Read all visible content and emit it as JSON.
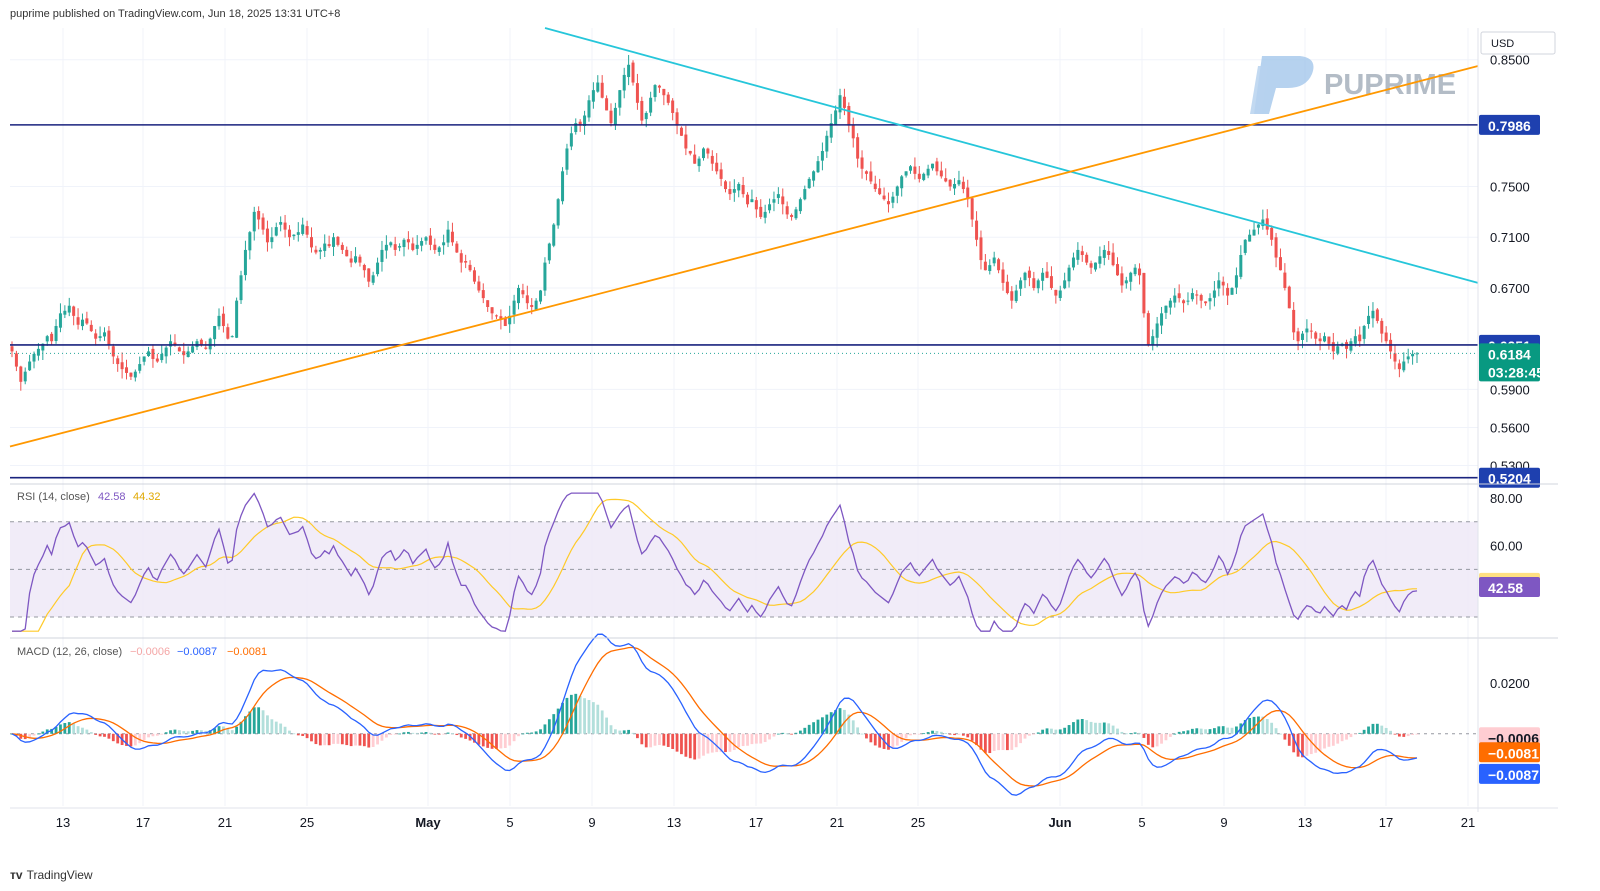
{
  "header": {
    "publish_line": "puprime published on TradingView.com, Jun 18, 2025 13:31 UTC+8"
  },
  "brand": {
    "watermark": "PUPRIME",
    "footer_logo": "TradingView",
    "accent": "#8ab4e0"
  },
  "currency_label": "USD",
  "colors": {
    "up": "#26a69a",
    "down": "#ef5350",
    "hline": "#1a237e",
    "trend_cyan": "#26c6da",
    "trend_orange": "#ff9800",
    "rsi_line": "#7e57c2",
    "rsi_ma": "#ffca28",
    "rsi_band": "#ede7f6",
    "macd_line": "#2962ff",
    "signal_line": "#ff6d00",
    "last_price_bg": "#089981",
    "hline_tag_bg": "#1e40af"
  },
  "chart_data": [
    {
      "type": "candlestick",
      "title": "",
      "price_axis": {
        "ticks": [
          "0.8500",
          "0.7500",
          "0.7100",
          "0.6700",
          "0.5900",
          "0.5600",
          "0.5300"
        ],
        "tick_values": [
          0.85,
          0.75,
          0.71,
          0.67,
          0.59,
          0.56,
          0.53
        ],
        "ylim": [
          0.517,
          0.875
        ]
      },
      "time_axis": {
        "labels": [
          "13",
          "17",
          "21",
          "25",
          "May",
          "5",
          "9",
          "13",
          "17",
          "21",
          "25",
          "Jun",
          "5",
          "9",
          "13",
          "17",
          "21"
        ]
      },
      "horizontal_levels": [
        {
          "label": "0.7986",
          "value": 0.7986
        },
        {
          "label": "0.6251",
          "value": 0.6251
        },
        {
          "label": "0.5204",
          "value": 0.5204
        }
      ],
      "trendlines": [
        {
          "name": "descending",
          "from": [
            "Apr 29",
            0.875
          ],
          "to": [
            "Jun 21",
            0.674
          ]
        },
        {
          "name": "ascending",
          "from": [
            "Apr 10",
            0.545
          ],
          "to": [
            "Jun 21",
            0.845
          ]
        }
      ],
      "last_price": {
        "label": "0.6184",
        "value": 0.6184,
        "countdown": "03:28:45"
      },
      "closes_4h_approx": [
        0.62,
        0.608,
        0.596,
        0.604,
        0.612,
        0.618,
        0.622,
        0.626,
        0.632,
        0.628,
        0.64,
        0.65,
        0.652,
        0.656,
        0.648,
        0.641,
        0.645,
        0.642,
        0.636,
        0.63,
        0.632,
        0.635,
        0.625,
        0.616,
        0.61,
        0.606,
        0.603,
        0.6,
        0.604,
        0.61,
        0.616,
        0.62,
        0.614,
        0.612,
        0.618,
        0.623,
        0.628,
        0.625,
        0.62,
        0.617,
        0.62,
        0.624,
        0.628,
        0.625,
        0.622,
        0.63,
        0.64,
        0.648,
        0.64,
        0.63,
        0.632,
        0.66,
        0.68,
        0.7,
        0.714,
        0.73,
        0.724,
        0.716,
        0.706,
        0.71,
        0.718,
        0.722,
        0.716,
        0.71,
        0.712,
        0.714,
        0.72,
        0.712,
        0.702,
        0.698,
        0.7,
        0.705,
        0.703,
        0.71,
        0.704,
        0.7,
        0.695,
        0.69,
        0.695,
        0.69,
        0.684,
        0.675,
        0.68,
        0.69,
        0.7,
        0.704,
        0.706,
        0.7,
        0.703,
        0.708,
        0.706,
        0.7,
        0.704,
        0.707,
        0.71,
        0.704,
        0.7,
        0.702,
        0.706,
        0.716,
        0.706,
        0.698,
        0.69,
        0.69,
        0.684,
        0.675,
        0.668,
        0.662,
        0.655,
        0.65,
        0.648,
        0.645,
        0.64,
        0.648,
        0.66,
        0.67,
        0.665,
        0.658,
        0.655,
        0.66,
        0.668,
        0.69,
        0.705,
        0.72,
        0.74,
        0.762,
        0.78,
        0.792,
        0.8,
        0.798,
        0.806,
        0.818,
        0.826,
        0.832,
        0.82,
        0.81,
        0.8,
        0.812,
        0.826,
        0.838,
        0.846,
        0.832,
        0.816,
        0.802,
        0.808,
        0.82,
        0.83,
        0.828,
        0.822,
        0.816,
        0.808,
        0.798,
        0.79,
        0.78,
        0.776,
        0.768,
        0.772,
        0.78,
        0.776,
        0.768,
        0.762,
        0.756,
        0.748,
        0.744,
        0.748,
        0.752,
        0.744,
        0.736,
        0.74,
        0.732,
        0.726,
        0.73,
        0.736,
        0.74,
        0.744,
        0.736,
        0.728,
        0.726,
        0.732,
        0.74,
        0.748,
        0.756,
        0.762,
        0.77,
        0.778,
        0.79,
        0.8,
        0.81,
        0.822,
        0.812,
        0.798,
        0.788,
        0.772,
        0.764,
        0.76,
        0.754,
        0.748,
        0.744,
        0.74,
        0.736,
        0.742,
        0.75,
        0.758,
        0.762,
        0.766,
        0.76,
        0.756,
        0.76,
        0.764,
        0.768,
        0.762,
        0.758,
        0.754,
        0.75,
        0.752,
        0.755,
        0.748,
        0.74,
        0.724,
        0.708,
        0.692,
        0.684,
        0.688,
        0.694,
        0.684,
        0.674,
        0.666,
        0.66,
        0.668,
        0.676,
        0.682,
        0.678,
        0.67,
        0.676,
        0.682,
        0.678,
        0.67,
        0.664,
        0.668,
        0.676,
        0.686,
        0.694,
        0.7,
        0.696,
        0.69,
        0.686,
        0.69,
        0.695,
        0.7,
        0.696,
        0.688,
        0.68,
        0.672,
        0.676,
        0.682,
        0.686,
        0.68,
        0.65,
        0.625,
        0.632,
        0.642,
        0.65,
        0.656,
        0.66,
        0.664,
        0.662,
        0.658,
        0.66,
        0.666,
        0.664,
        0.66,
        0.658,
        0.662,
        0.668,
        0.676,
        0.672,
        0.664,
        0.67,
        0.68,
        0.696,
        0.708,
        0.712,
        0.716,
        0.72,
        0.724,
        0.716,
        0.708,
        0.694,
        0.684,
        0.67,
        0.654,
        0.635,
        0.628,
        0.634,
        0.638,
        0.636,
        0.63,
        0.628,
        0.632,
        0.626,
        0.62,
        0.624,
        0.626,
        0.622,
        0.628,
        0.632,
        0.628,
        0.64,
        0.648,
        0.652,
        0.644,
        0.634,
        0.628,
        0.62,
        0.612,
        0.606,
        0.612,
        0.616,
        0.618,
        0.6184
      ]
    },
    {
      "type": "line",
      "title": "RSI (14, close)",
      "header_values": [
        "42.58",
        "44.32"
      ],
      "axis": {
        "ticks": [
          "80.00",
          "60.00"
        ],
        "tick_values": [
          80,
          60
        ],
        "ylim": [
          22,
          85
        ]
      },
      "band": [
        30,
        70
      ],
      "midline": 50,
      "series": [
        {
          "name": "RSI",
          "last_label": "42.58",
          "last": 42.58
        },
        {
          "name": "RSI-based MA",
          "last_label": "44.32",
          "last": 44.32
        }
      ]
    },
    {
      "type": "line",
      "title": "MACD (12, 26, close)",
      "header_values": [
        "−0.0006",
        "−0.0087",
        "−0.0081"
      ],
      "axis": {
        "ticks": [
          "0.0200"
        ],
        "tick_values": [
          0.02
        ],
        "ylim": [
          -0.0285,
          0.037
        ]
      },
      "series": [
        {
          "name": "Histogram",
          "last_label": "−0.0006",
          "last": -0.0006
        },
        {
          "name": "Signal",
          "last_label": "−0.0081",
          "last": -0.0081
        },
        {
          "name": "MACD",
          "last_label": "−0.0087",
          "last": -0.0087
        }
      ]
    }
  ]
}
